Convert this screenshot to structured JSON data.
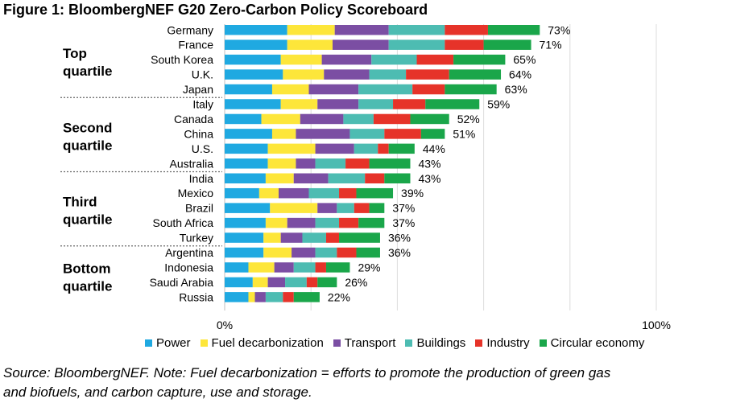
{
  "figure_title": "Figure 1: BloombergNEF G20 Zero-Carbon Policy Scoreboard",
  "source_line1": "Source: BloombergNEF. Note: Fuel decarbonization = efforts to promote the production of green gas",
  "source_line2": "and biofuels, and carbon capture, use and storage.",
  "colors": {
    "Power": "#1fa9e1",
    "Fuel decarbonization": "#fde63a",
    "Transport": "#7b4ea3",
    "Buildings": "#4dbcb2",
    "Industry": "#e63329",
    "Circular economy": "#1aa64a"
  },
  "chart_data": {
    "type": "bar",
    "orientation": "horizontal",
    "stacked": true,
    "xlim": [
      0,
      100
    ],
    "x_ticks": [
      "0%",
      "100%"
    ],
    "grid": true,
    "legend_position": "bottom",
    "groups": [
      {
        "label_line1": "Top",
        "label_line2": "quartile",
        "countries": [
          "Germany",
          "France",
          "South Korea",
          "U.K.",
          "Japan"
        ]
      },
      {
        "label_line1": "Second",
        "label_line2": "quartile",
        "countries": [
          "Italy",
          "Canada",
          "China",
          "U.S.",
          "Australia"
        ]
      },
      {
        "label_line1": "Third",
        "label_line2": "quartile",
        "countries": [
          "India",
          "Mexico",
          "Brazil",
          "South Africa",
          "Turkey"
        ]
      },
      {
        "label_line1": "Bottom",
        "label_line2": "quartile",
        "countries": [
          "Argentina",
          "Indonesia",
          "Saudi Arabia",
          "Russia"
        ]
      }
    ],
    "categories": [
      "Germany",
      "France",
      "South Korea",
      "U.K.",
      "Japan",
      "Italy",
      "Canada",
      "China",
      "U.S.",
      "Australia",
      "India",
      "Mexico",
      "Brazil",
      "South Africa",
      "Turkey",
      "Argentina",
      "Indonesia",
      "Saudi Arabia",
      "Russia"
    ],
    "totals": [
      "73%",
      "71%",
      "65%",
      "64%",
      "63%",
      "59%",
      "52%",
      "51%",
      "44%",
      "43%",
      "43%",
      "39%",
      "37%",
      "37%",
      "36%",
      "36%",
      "29%",
      "26%",
      "22%"
    ],
    "series": [
      {
        "name": "Power",
        "values": [
          14.5,
          14.5,
          13,
          13.5,
          11,
          13,
          8.5,
          11,
          10,
          10,
          9.5,
          8,
          10.5,
          9.5,
          9,
          9,
          5.5,
          6.5,
          5.5
        ]
      },
      {
        "name": "Fuel decarbonization",
        "values": [
          11,
          10.5,
          9.5,
          9.5,
          8.5,
          8.5,
          9,
          5.5,
          11,
          6.5,
          6.5,
          4.5,
          11,
          5,
          4,
          6.5,
          6,
          3.5,
          1.5
        ]
      },
      {
        "name": "Transport",
        "values": [
          12.5,
          13,
          11.5,
          10.5,
          11.5,
          9.5,
          10,
          12.5,
          9,
          4.5,
          8,
          7,
          4.5,
          6.5,
          5,
          5.5,
          4.5,
          4,
          2.5
        ]
      },
      {
        "name": "Buildings",
        "values": [
          13,
          13,
          10.5,
          8.5,
          12.5,
          8,
          7,
          8,
          5.5,
          7,
          8.5,
          7,
          4,
          5.5,
          5.5,
          5,
          5,
          5,
          4
        ]
      },
      {
        "name": "Industry",
        "values": [
          10,
          9,
          8.5,
          10,
          7.5,
          7.5,
          8.5,
          8.5,
          2.5,
          5.5,
          4.5,
          4,
          3.5,
          4.5,
          3,
          4.5,
          2.5,
          2.5,
          2.5
        ]
      },
      {
        "name": "Circular economy",
        "values": [
          12,
          11,
          12,
          12,
          12,
          12.5,
          9,
          5.5,
          6,
          9.5,
          6,
          8.5,
          3.5,
          6,
          9.5,
          5.5,
          5.5,
          4.5,
          6
        ]
      }
    ]
  }
}
